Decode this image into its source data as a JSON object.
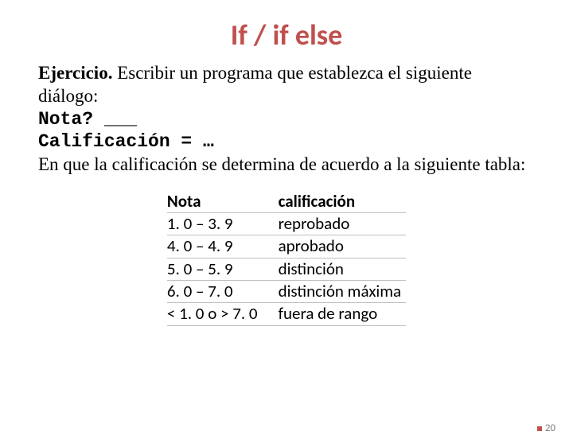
{
  "title": {
    "text": "If / if else",
    "color": "#c0504d",
    "fontsize": 36
  },
  "body": {
    "fontsize": 23,
    "color": "#000000",
    "line1_prefix_bold": "Ejercicio.",
    "line1_rest": " Escribir un programa que establezca el siguiente diálogo:",
    "code1": "Nota? ___",
    "code2": "Calificación = …",
    "line3": "En que la calificación se determina de acuerdo a la siguiente tabla:"
  },
  "table": {
    "fontsize": 21,
    "header_weight": "700",
    "row_border_color": "#bfbfbf",
    "col1_header": "Nota",
    "col2_header": "calificación",
    "rows": [
      {
        "nota": "1. 0 – 3. 9",
        "calif": "reprobado"
      },
      {
        "nota": "4. 0 – 4. 9",
        "calif": "aprobado"
      },
      {
        "nota": "5. 0 – 5. 9",
        "calif": "distinción"
      },
      {
        "nota": "6. 0 – 7. 0",
        "calif": "distinción máxima"
      },
      {
        "nota": "< 1. 0 o > 7. 0",
        "calif": "fuera de rango"
      }
    ]
  },
  "footer": {
    "page_number": "20",
    "fontsize": 13,
    "color": "#7f7f7f",
    "bullet_color": "#c0504d"
  }
}
